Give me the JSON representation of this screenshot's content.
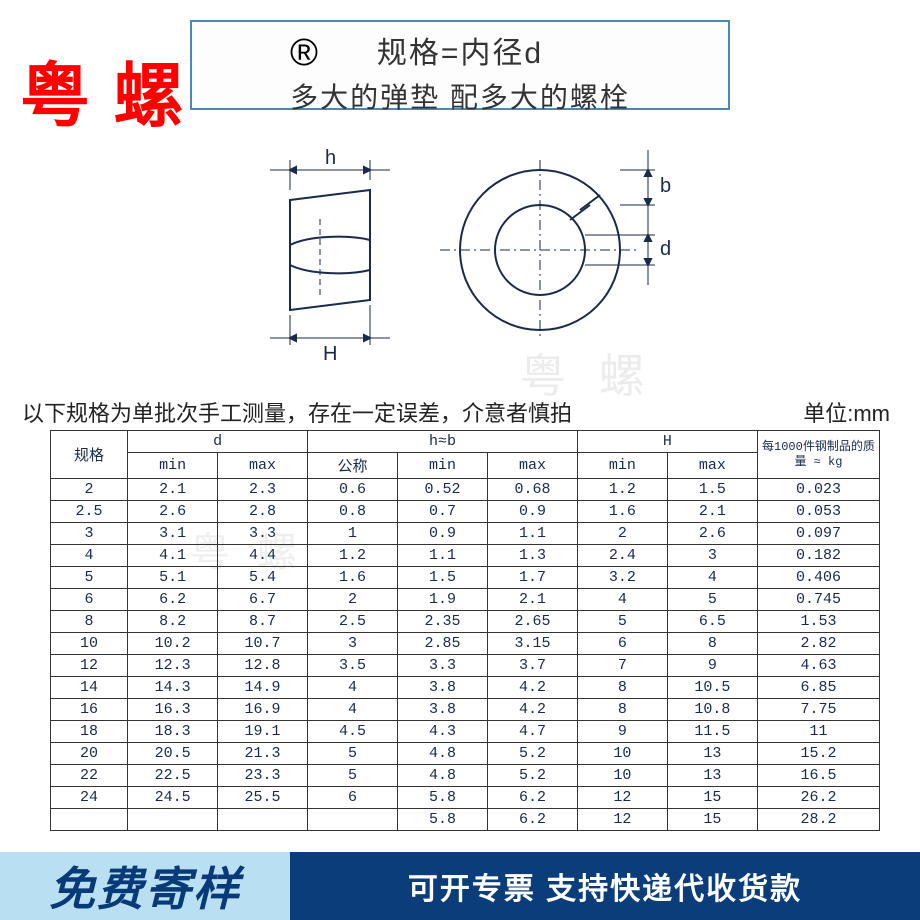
{
  "brand": "粤 螺",
  "title": {
    "line1": "规格=内径d",
    "line2": "多大的弹垫 配多大的螺栓"
  },
  "watermark": "粤 螺",
  "note_text": "以下规格为单批次手工测量，存在一定误差，介意者慎拍",
  "unit_text": "单位:mm",
  "diagram": {
    "stroke": "#1a2a4a",
    "labels": {
      "h": "h",
      "b": "b",
      "d": "d",
      "H": "H"
    }
  },
  "table": {
    "headers": {
      "spec": "规格",
      "d": "d",
      "d_min": "min",
      "d_max": "max",
      "hb": "h≈b",
      "hb_nom": "公称",
      "hb_min": "min",
      "hb_max": "max",
      "H": "H",
      "H_min": "min",
      "H_max": "max",
      "weight": "每1000件钢制品的质量 ≈ kg"
    },
    "rows": [
      [
        "2",
        "2.1",
        "2.3",
        "0.6",
        "0.52",
        "0.68",
        "1.2",
        "1.5",
        "0.023"
      ],
      [
        "2.5",
        "2.6",
        "2.8",
        "0.8",
        "0.7",
        "0.9",
        "1.6",
        "2.1",
        "0.053"
      ],
      [
        "3",
        "3.1",
        "3.3",
        "1",
        "0.9",
        "1.1",
        "2",
        "2.6",
        "0.097"
      ],
      [
        "4",
        "4.1",
        "4.4",
        "1.2",
        "1.1",
        "1.3",
        "2.4",
        "3",
        "0.182"
      ],
      [
        "5",
        "5.1",
        "5.4",
        "1.6",
        "1.5",
        "1.7",
        "3.2",
        "4",
        "0.406"
      ],
      [
        "6",
        "6.2",
        "6.7",
        "2",
        "1.9",
        "2.1",
        "4",
        "5",
        "0.745"
      ],
      [
        "8",
        "8.2",
        "8.7",
        "2.5",
        "2.35",
        "2.65",
        "5",
        "6.5",
        "1.53"
      ],
      [
        "10",
        "10.2",
        "10.7",
        "3",
        "2.85",
        "3.15",
        "6",
        "8",
        "2.82"
      ],
      [
        "12",
        "12.3",
        "12.8",
        "3.5",
        "3.3",
        "3.7",
        "7",
        "9",
        "4.63"
      ],
      [
        "14",
        "14.3",
        "14.9",
        "4",
        "3.8",
        "4.2",
        "8",
        "10.5",
        "6.85"
      ],
      [
        "16",
        "16.3",
        "16.9",
        "4",
        "3.8",
        "4.2",
        "8",
        "10.8",
        "7.75"
      ],
      [
        "18",
        "18.3",
        "19.1",
        "4.5",
        "4.3",
        "4.7",
        "9",
        "11.5",
        "11"
      ],
      [
        "20",
        "20.5",
        "21.3",
        "5",
        "4.8",
        "5.2",
        "10",
        "13",
        "15.2"
      ],
      [
        "22",
        "22.5",
        "23.3",
        "5",
        "4.8",
        "5.2",
        "10",
        "13",
        "16.5"
      ],
      [
        "24",
        "24.5",
        "25.5",
        "6",
        "5.8",
        "6.2",
        "12",
        "15",
        "26.2"
      ],
      [
        "",
        "",
        "",
        "",
        "5.8",
        "6.2",
        "12",
        "15",
        "28.2"
      ]
    ]
  },
  "footer": {
    "left": "免费寄样",
    "right": "可开专票 支持快递代收货款"
  },
  "colors": {
    "title_border": "#4a88b5",
    "brand_color": "#ff0000",
    "table_border": "#333333",
    "table_text": "#1a2a4a",
    "footer_left_bg": "#b9e0f2",
    "footer_left_text": "#083a78",
    "footer_right_bg": "#0a3d7a",
    "footer_right_text": "#ffffff"
  }
}
